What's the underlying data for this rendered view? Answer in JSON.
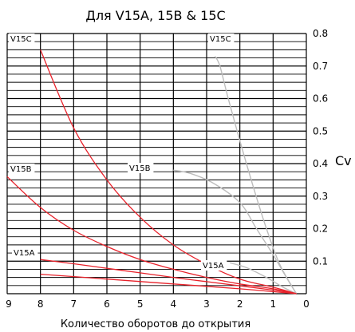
{
  "chart_data": {
    "type": "line",
    "title": "Для V15A, 15B & 15C",
    "xlabel": "Количество оборотов до открытия",
    "ylabel": "Cv",
    "x_reversed": true,
    "xlim": [
      0,
      9
    ],
    "ylim": [
      0,
      0.8
    ],
    "x_ticks": [
      "9",
      "8",
      "7",
      "6",
      "5",
      "4",
      "3",
      "2",
      "1",
      "0"
    ],
    "y_ticks": [
      "0.8",
      "0.7",
      "0.6",
      "0.5",
      "0.4",
      "0.3",
      "0.2",
      "0.1"
    ],
    "grid": true,
    "red_series": [
      {
        "name": "V15C",
        "label_position": "top-left",
        "points": [
          [
            8,
            0.75
          ],
          [
            7,
            0.51
          ],
          [
            6,
            0.35
          ],
          [
            5,
            0.235
          ],
          [
            4,
            0.15
          ],
          [
            3,
            0.09
          ],
          [
            2,
            0.045
          ],
          [
            1,
            0.02
          ],
          [
            0.3,
            0.0
          ]
        ]
      },
      {
        "name": "V15B",
        "label_position": "left",
        "points": [
          [
            9,
            0.36
          ],
          [
            8,
            0.265
          ],
          [
            7,
            0.195
          ],
          [
            6,
            0.145
          ],
          [
            5,
            0.105
          ],
          [
            4,
            0.075
          ],
          [
            3,
            0.05
          ],
          [
            2,
            0.03
          ],
          [
            1,
            0.015
          ],
          [
            0.3,
            0.0
          ]
        ]
      },
      {
        "name": "V15A",
        "label_position": "bottom-left",
        "points": [
          [
            8,
            0.105
          ],
          [
            7,
            0.092
          ],
          [
            6,
            0.078
          ],
          [
            5,
            0.064
          ],
          [
            4,
            0.05
          ],
          [
            3,
            0.037
          ],
          [
            2,
            0.024
          ],
          [
            1,
            0.011
          ],
          [
            0.3,
            0.0
          ]
        ]
      },
      {
        "name": "",
        "label_position": "",
        "points": [
          [
            8,
            0.06
          ],
          [
            6,
            0.045
          ],
          [
            4,
            0.03
          ],
          [
            2,
            0.015
          ],
          [
            0.3,
            0.0
          ]
        ]
      }
    ],
    "gray_series": [
      {
        "name": "V15C",
        "label_position": "top-right",
        "points": [
          [
            2.75,
            0.73
          ],
          [
            2.6,
            0.7
          ],
          [
            2.35,
            0.6
          ],
          [
            2.0,
            0.47
          ],
          [
            1.6,
            0.33
          ],
          [
            1.2,
            0.2
          ],
          [
            0.8,
            0.09
          ],
          [
            0.3,
            0.0
          ]
        ]
      },
      {
        "name": "V15B",
        "label_position": "middle",
        "points": [
          [
            4.0,
            0.38
          ],
          [
            3.5,
            0.37
          ],
          [
            2.8,
            0.34
          ],
          [
            2.0,
            0.28
          ],
          [
            1.5,
            0.2
          ],
          [
            1.0,
            0.12
          ],
          [
            0.6,
            0.05
          ],
          [
            0.3,
            0.0
          ]
        ]
      },
      {
        "name": "V15A",
        "label_position": "bottom-right",
        "points": [
          [
            2.3,
            0.095
          ],
          [
            1.8,
            0.08
          ],
          [
            1.2,
            0.05
          ],
          [
            0.7,
            0.02
          ],
          [
            0.3,
            0.0
          ]
        ]
      }
    ],
    "colors": {
      "red": "#e8222b",
      "gray": "#bdbdbd",
      "grid": "#000000"
    }
  }
}
